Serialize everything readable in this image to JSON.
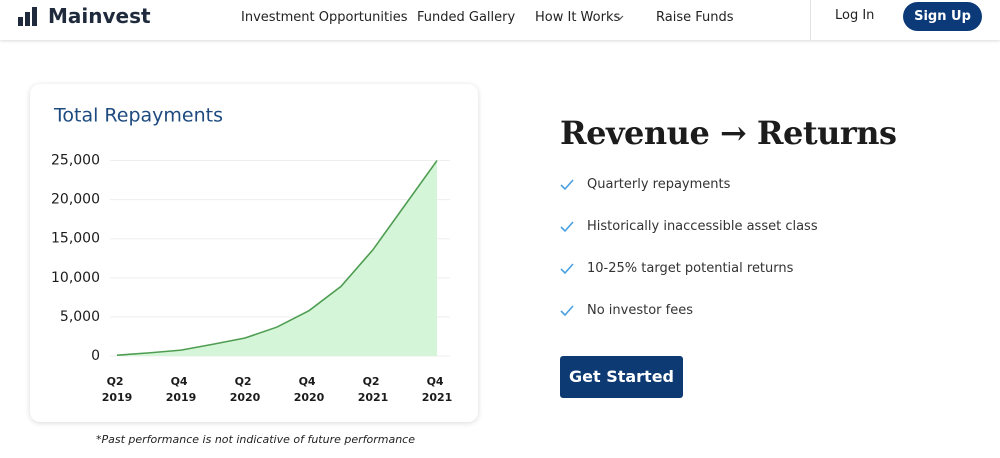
{
  "nav": {
    "brand": "Mainvest",
    "links": [
      "Investment Opportunities",
      "Funded Gallery",
      "How It Works",
      "Raise Funds"
    ],
    "login": "Log In",
    "signup": "Sign Up"
  },
  "chart_data": {
    "type": "area",
    "title": "Total Repayments",
    "categories": [
      "Q2 2019",
      null,
      "Q4 2019",
      null,
      "Q2 2020",
      null,
      "Q4 2020",
      null,
      "Q2 2021",
      null,
      "Q4 2021"
    ],
    "values": [
      100,
      400,
      750,
      1500,
      2300,
      3700,
      5800,
      8900,
      13600,
      19300,
      25000
    ],
    "color": "#4f9d52",
    "fill": "#d4f5d7",
    "ylim": [
      0,
      27500
    ],
    "yticks": [
      0,
      {
        "value": 5000,
        "label": "5,000"
      },
      {
        "value": 10000,
        "label": "10,000"
      },
      {
        "value": 15000,
        "label": "15,000"
      },
      {
        "value": 20000,
        "label": "20,000"
      },
      {
        "value": 25000,
        "label": "25,000"
      }
    ],
    "grid": true
  },
  "footnote": "*Past performance is not indicative of future performance",
  "hero": {
    "title": "Revenue → Returns",
    "features": [
      "Quarterly repayments",
      "Historically inaccessible asset class",
      "10-25% target potential returns",
      "No investor fees"
    ],
    "cta": "Get Started"
  }
}
